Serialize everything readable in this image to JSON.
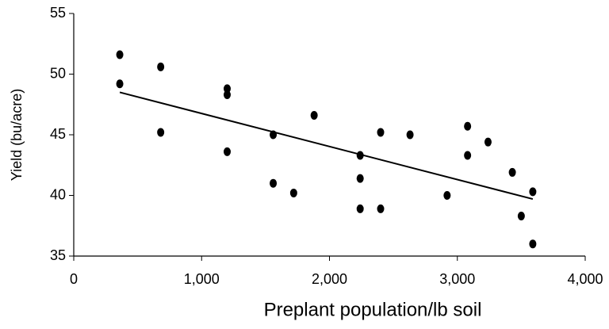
{
  "chart_data": {
    "type": "scatter",
    "xlabel": "Preplant population/lb soil",
    "ylabel": "Yield (bu/acre)",
    "xlim": [
      0,
      4000
    ],
    "ylim": [
      35,
      55
    ],
    "xticks": [
      0,
      {
        "value": 1000,
        "label": "1,000"
      },
      {
        "value": 2000,
        "label": "2,000"
      },
      {
        "value": 3000,
        "label": "3,000"
      },
      {
        "value": 4000,
        "label": "4,000"
      }
    ],
    "yticks": [
      35,
      40,
      45,
      50,
      55
    ],
    "color": "#000000",
    "x": [
      360,
      360,
      680,
      680,
      1200,
      1200,
      1200,
      1560,
      1560,
      1720,
      1880,
      2240,
      2240,
      2240,
      2400,
      2400,
      2630,
      2920,
      3080,
      3080,
      3240,
      3430,
      3500,
      3590,
      3590
    ],
    "values": [
      51.6,
      49.2,
      50.6,
      45.2,
      48.8,
      48.3,
      43.6,
      45.0,
      41.0,
      40.2,
      46.6,
      43.3,
      41.4,
      38.9,
      45.2,
      38.9,
      45.0,
      40.0,
      45.7,
      43.3,
      44.4,
      41.9,
      38.3,
      40.3,
      36.0
    ],
    "trendline": {
      "x": [
        360,
        3590
      ],
      "values": [
        48.5,
        39.7
      ]
    }
  }
}
